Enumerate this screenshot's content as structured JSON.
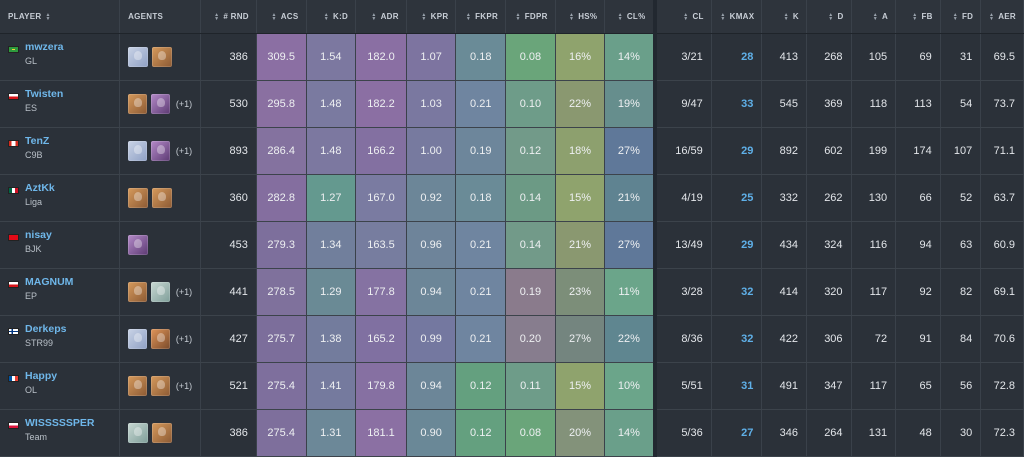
{
  "headers": {
    "player": "PLAYER",
    "agents": "AGENTS",
    "rnd": "# RND",
    "acs": "ACS",
    "kd": "K:D",
    "adr": "ADR",
    "kpr": "KPR",
    "fkpr": "FKPR",
    "fdpr": "FDPR",
    "hs": "HS%",
    "clp": "CL%",
    "cl": "CL",
    "kmax": "KMAX",
    "k": "K",
    "d": "D",
    "a": "A",
    "fb": "FB",
    "fd": "FD",
    "aer": "AER"
  },
  "colors": {
    "acs": [
      "#8b6fa3",
      "#8a70a1",
      "#84729f",
      "#846e9f",
      "#7d6f9c",
      "#7f719c",
      "#7c6e9b",
      "#7e6f9d",
      "#7e6f9c"
    ],
    "kd": [
      "#7c78a0",
      "#7a7aa0",
      "#7c78a0",
      "#64998f",
      "#717f9c",
      "#6a8a95",
      "#737c9d",
      "#757a9e",
      "#6c8898"
    ],
    "adr": [
      "#8a6fa3",
      "#8b6fa3",
      "#8370a1",
      "#7a7ba1",
      "#777d9f",
      "#8572a2",
      "#8070a1",
      "#8670a2",
      "#8b70a3"
    ],
    "kpr": [
      "#7d74a0",
      "#7a78a0",
      "#777a9f",
      "#6c8698",
      "#6e849a",
      "#6c8698",
      "#7478a0",
      "#6c8698",
      "#6a8897"
    ],
    "fkpr": [
      "#6a8b97",
      "#6f85a0",
      "#6d869b",
      "#6a8b97",
      "#6f85a0",
      "#6f85a0",
      "#6f85a0",
      "#64a07f",
      "#64a07f"
    ],
    "fdpr": [
      "#6aa57a",
      "#6e9c89",
      "#729a89",
      "#6c9a85",
      "#729a89",
      "#8a7b8c",
      "#877d8e",
      "#6e9c89",
      "#6aa57a"
    ],
    "hs": [
      "#8fa36d",
      "#8a9870",
      "#8da06e",
      "#8fa36d",
      "#8a9870",
      "#7c8e79",
      "#74857f",
      "#8fa36d",
      "#83927a"
    ],
    "clp": [
      "#6a9f8a",
      "#668e8d",
      "#5f7899",
      "#5f8391",
      "#5f7899",
      "#6ba58a",
      "#5f8690",
      "#6ba58a",
      "#6a9f8a"
    ]
  },
  "players": [
    {
      "name": "mwzera",
      "team": "GL",
      "flag": "brazil",
      "agents": [
        "jett",
        "chamber"
      ],
      "extra": "",
      "rnd": "386",
      "acs": "309.5",
      "kd": "1.54",
      "adr": "182.0",
      "kpr": "1.07",
      "fkpr": "0.18",
      "fdpr": "0.08",
      "hs": "16%",
      "clp": "14%",
      "cl": "3/21",
      "kmax": "28",
      "k": "413",
      "d": "268",
      "a": "105",
      "fb": "69",
      "fd": "31",
      "aer": "69.5"
    },
    {
      "name": "Twisten",
      "team": "ES",
      "flag": "czechia",
      "agents": [
        "chamber",
        "reyna"
      ],
      "extra": "(+1)",
      "rnd": "530",
      "acs": "295.8",
      "kd": "1.48",
      "adr": "182.2",
      "kpr": "1.03",
      "fkpr": "0.21",
      "fdpr": "0.10",
      "hs": "22%",
      "clp": "19%",
      "cl": "9/47",
      "kmax": "33",
      "k": "545",
      "d": "369",
      "a": "118",
      "fb": "113",
      "fd": "54",
      "aer": "73.7"
    },
    {
      "name": "TenZ",
      "team": "C9B",
      "flag": "canada",
      "agents": [
        "jett",
        "reyna"
      ],
      "extra": "(+1)",
      "rnd": "893",
      "acs": "286.4",
      "kd": "1.48",
      "adr": "166.2",
      "kpr": "1.00",
      "fkpr": "0.19",
      "fdpr": "0.12",
      "hs": "18%",
      "clp": "27%",
      "cl": "16/59",
      "kmax": "29",
      "k": "892",
      "d": "602",
      "a": "199",
      "fb": "174",
      "fd": "107",
      "aer": "71.1"
    },
    {
      "name": "AztKk",
      "team": "Liga",
      "flag": "mexico",
      "agents": [
        "chamber",
        "chamber"
      ],
      "extra": "",
      "rnd": "360",
      "acs": "282.8",
      "kd": "1.27",
      "adr": "167.0",
      "kpr": "0.92",
      "fkpr": "0.18",
      "fdpr": "0.14",
      "hs": "15%",
      "clp": "21%",
      "cl": "4/19",
      "kmax": "25",
      "k": "332",
      "d": "262",
      "a": "130",
      "fb": "66",
      "fd": "52",
      "aer": "63.7"
    },
    {
      "name": "nisay",
      "team": "BJK",
      "flag": "turkey",
      "agents": [
        "reyna"
      ],
      "extra": "",
      "rnd": "453",
      "acs": "279.3",
      "kd": "1.34",
      "adr": "163.5",
      "kpr": "0.96",
      "fkpr": "0.21",
      "fdpr": "0.14",
      "hs": "21%",
      "clp": "27%",
      "cl": "13/49",
      "kmax": "29",
      "k": "434",
      "d": "324",
      "a": "116",
      "fb": "94",
      "fd": "63",
      "aer": "60.9"
    },
    {
      "name": "MAGNUM",
      "team": "EP",
      "flag": "czechia",
      "agents": [
        "chamber",
        "sage"
      ],
      "extra": "(+1)",
      "rnd": "441",
      "acs": "278.5",
      "kd": "1.29",
      "adr": "177.8",
      "kpr": "0.94",
      "fkpr": "0.21",
      "fdpr": "0.19",
      "hs": "23%",
      "clp": "11%",
      "cl": "3/28",
      "kmax": "32",
      "k": "414",
      "d": "320",
      "a": "117",
      "fb": "92",
      "fd": "82",
      "aer": "69.1"
    },
    {
      "name": "Derkeps",
      "team": "STR99",
      "flag": "finland",
      "agents": [
        "jett",
        "raze"
      ],
      "extra": "(+1)",
      "rnd": "427",
      "acs": "275.7",
      "kd": "1.38",
      "adr": "165.2",
      "kpr": "0.99",
      "fkpr": "0.21",
      "fdpr": "0.20",
      "hs": "27%",
      "clp": "22%",
      "cl": "8/36",
      "kmax": "32",
      "k": "422",
      "d": "306",
      "a": "72",
      "fb": "91",
      "fd": "84",
      "aer": "70.6"
    },
    {
      "name": "Happy",
      "team": "OL",
      "flag": "france",
      "agents": [
        "chamber",
        "chamber"
      ],
      "extra": "(+1)",
      "rnd": "521",
      "acs": "275.4",
      "kd": "1.41",
      "adr": "179.8",
      "kpr": "0.94",
      "fkpr": "0.12",
      "fdpr": "0.11",
      "hs": "15%",
      "clp": "10%",
      "cl": "5/51",
      "kmax": "31",
      "k": "491",
      "d": "347",
      "a": "117",
      "fb": "65",
      "fd": "56",
      "aer": "72.8"
    },
    {
      "name": "WISSSSSPER",
      "team": "Team",
      "flag": "poland",
      "agents": [
        "sage",
        "chamber"
      ],
      "extra": "",
      "rnd": "386",
      "acs": "275.4",
      "kd": "1.31",
      "adr": "181.1",
      "kpr": "0.90",
      "fkpr": "0.12",
      "fdpr": "0.08",
      "hs": "20%",
      "clp": "14%",
      "cl": "5/36",
      "kmax": "27",
      "k": "346",
      "d": "264",
      "a": "131",
      "fb": "48",
      "fd": "30",
      "aer": "72.3"
    }
  ]
}
